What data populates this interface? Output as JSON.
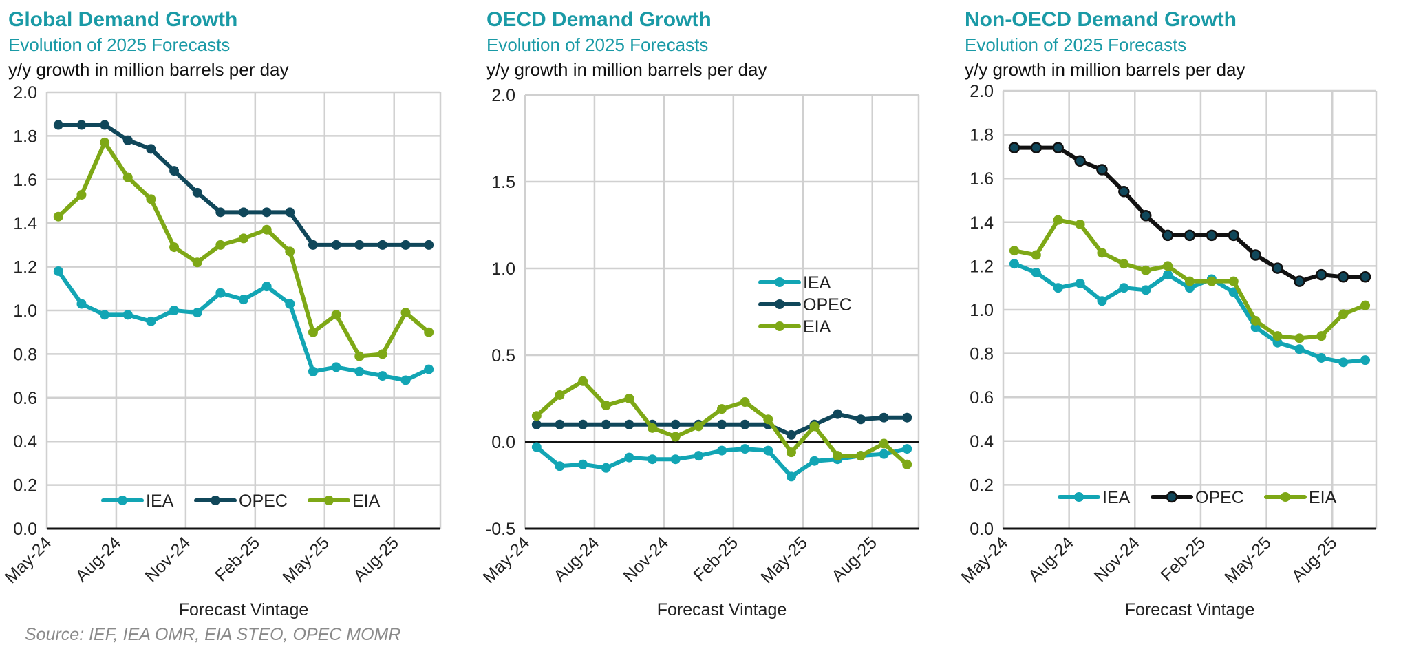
{
  "colors": {
    "title": "#1a9aa6",
    "IEA": "#12a5b4",
    "OPEC_dark": "#10475a",
    "OPEC_black": "#111111",
    "EIA": "#7ea816",
    "grid": "#d0d0d0"
  },
  "source": "Source: IEF, IEA OMR, EIA STEO, OPEC MOMR",
  "chart_data": [
    {
      "type": "line",
      "title": "Global Demand Growth",
      "subtitle": "Evolution of 2025 Forecasts",
      "ylabel": "y/y growth in million barrels per day",
      "xlabel": "Forecast Vintage",
      "ylim": [
        0,
        2
      ],
      "yticks": [
        "0.0",
        "0.2",
        "0.4",
        "0.6",
        "0.8",
        "1.0",
        "1.2",
        "1.4",
        "1.6",
        "1.8",
        "2.0"
      ],
      "ytick_values": [
        0,
        0.2,
        0.4,
        0.6,
        0.8,
        1.0,
        1.2,
        1.4,
        1.6,
        1.8,
        2.0
      ],
      "x": [
        "May-24",
        "Jun-24",
        "Jul-24",
        "Aug-24",
        "Sep-24",
        "Oct-24",
        "Nov-24",
        "Dec-24",
        "Jan-25",
        "Feb-25",
        "Mar-25",
        "Apr-25",
        "May-25",
        "Jun-25",
        "Jul-25",
        "Aug-25",
        "Sep-25"
      ],
      "xtick_labels": [
        "May-24",
        "Aug-24",
        "Nov-24",
        "Feb-25",
        "May-25",
        "Aug-25"
      ],
      "xtick_index": [
        0,
        3,
        6,
        9,
        12,
        15
      ],
      "legend_position": "bottom",
      "series": [
        {
          "name": "IEA",
          "color_key": "IEA",
          "values": [
            1.18,
            1.03,
            0.98,
            0.98,
            0.95,
            1.0,
            0.99,
            1.08,
            1.05,
            1.11,
            1.03,
            0.72,
            0.74,
            0.72,
            0.7,
            0.68,
            0.73
          ]
        },
        {
          "name": "OPEC",
          "color_key": "OPEC_dark",
          "values": [
            1.85,
            1.85,
            1.85,
            1.78,
            1.74,
            1.64,
            1.54,
            1.45,
            1.45,
            1.45,
            1.45,
            1.3,
            1.3,
            1.3,
            1.3,
            1.3,
            1.3
          ]
        },
        {
          "name": "EIA",
          "color_key": "EIA",
          "values": [
            1.43,
            1.53,
            1.77,
            1.61,
            1.51,
            1.29,
            1.22,
            1.3,
            1.33,
            1.37,
            1.27,
            0.9,
            0.98,
            0.79,
            0.8,
            0.99,
            0.9
          ]
        }
      ]
    },
    {
      "type": "line",
      "title": "OECD Demand Growth",
      "subtitle": "Evolution of 2025 Forecasts",
      "ylabel": "y/y growth in million barrels per day",
      "xlabel": "Forecast Vintage",
      "ylim": [
        -0.5,
        2
      ],
      "yticks": [
        "-0.5",
        "0.0",
        "0.5",
        "1.0",
        "1.5",
        "2.0"
      ],
      "ytick_values": [
        -0.5,
        0,
        0.5,
        1.0,
        1.5,
        2.0
      ],
      "x": [
        "May-24",
        "Jun-24",
        "Jul-24",
        "Aug-24",
        "Sep-24",
        "Oct-24",
        "Nov-24",
        "Dec-24",
        "Jan-25",
        "Feb-25",
        "Mar-25",
        "Apr-25",
        "May-25",
        "Jun-25",
        "Jul-25",
        "Aug-25",
        "Sep-25"
      ],
      "xtick_labels": [
        "May-24",
        "Aug-24",
        "Nov-24",
        "Feb-25",
        "May-25",
        "Aug-25"
      ],
      "xtick_index": [
        0,
        3,
        6,
        9,
        12,
        15
      ],
      "legend_position": "center-right",
      "series": [
        {
          "name": "IEA",
          "color_key": "IEA",
          "values": [
            -0.03,
            -0.14,
            -0.13,
            -0.15,
            -0.09,
            -0.1,
            -0.1,
            -0.08,
            -0.05,
            -0.04,
            -0.05,
            -0.2,
            -0.11,
            -0.1,
            -0.08,
            -0.07,
            -0.04
          ]
        },
        {
          "name": "OPEC",
          "color_key": "OPEC_dark",
          "values": [
            0.1,
            0.1,
            0.1,
            0.1,
            0.1,
            0.1,
            0.1,
            0.1,
            0.1,
            0.1,
            0.1,
            0.04,
            0.1,
            0.16,
            0.13,
            0.14,
            0.14
          ]
        },
        {
          "name": "EIA",
          "color_key": "EIA",
          "values": [
            0.15,
            0.27,
            0.35,
            0.21,
            0.25,
            0.08,
            0.03,
            0.09,
            0.19,
            0.23,
            0.13,
            -0.06,
            0.09,
            -0.08,
            -0.08,
            -0.01,
            -0.13
          ]
        }
      ]
    },
    {
      "type": "line",
      "title": "Non-OECD Demand Growth",
      "subtitle": "Evolution of 2025 Forecasts",
      "ylabel": "y/y growth in million barrels per day",
      "xlabel": "Forecast Vintage",
      "ylim": [
        0,
        2
      ],
      "yticks": [
        "0.0",
        "0.2",
        "0.4",
        "0.6",
        "0.8",
        "1.0",
        "1.2",
        "1.4",
        "1.6",
        "1.8",
        "2.0"
      ],
      "ytick_values": [
        0,
        0.2,
        0.4,
        0.6,
        0.8,
        1.0,
        1.2,
        1.4,
        1.6,
        1.8,
        2.0
      ],
      "x": [
        "May-24",
        "Jun-24",
        "Jul-24",
        "Aug-24",
        "Sep-24",
        "Oct-24",
        "Nov-24",
        "Dec-24",
        "Jan-25",
        "Feb-25",
        "Mar-25",
        "Apr-25",
        "May-25",
        "Jun-25",
        "Jul-25",
        "Aug-25",
        "Sep-25"
      ],
      "xtick_labels": [
        "May-24",
        "Aug-24",
        "Nov-24",
        "Feb-25",
        "May-25",
        "Aug-25"
      ],
      "xtick_index": [
        0,
        3,
        6,
        9,
        12,
        15
      ],
      "legend_position": "bottom",
      "series": [
        {
          "name": "IEA",
          "color_key": "IEA",
          "values": [
            1.21,
            1.17,
            1.1,
            1.12,
            1.04,
            1.1,
            1.09,
            1.16,
            1.1,
            1.14,
            1.08,
            0.92,
            0.85,
            0.82,
            0.78,
            0.76,
            0.77
          ]
        },
        {
          "name": "OPEC",
          "color_key": "OPEC_black",
          "values": [
            1.74,
            1.74,
            1.74,
            1.68,
            1.64,
            1.54,
            1.43,
            1.34,
            1.34,
            1.34,
            1.34,
            1.25,
            1.19,
            1.13,
            1.16,
            1.15,
            1.15
          ]
        },
        {
          "name": "EIA",
          "color_key": "EIA",
          "values": [
            1.27,
            1.25,
            1.41,
            1.39,
            1.26,
            1.21,
            1.18,
            1.2,
            1.13,
            1.13,
            1.13,
            0.95,
            0.88,
            0.87,
            0.88,
            0.98,
            1.02
          ]
        }
      ]
    }
  ]
}
